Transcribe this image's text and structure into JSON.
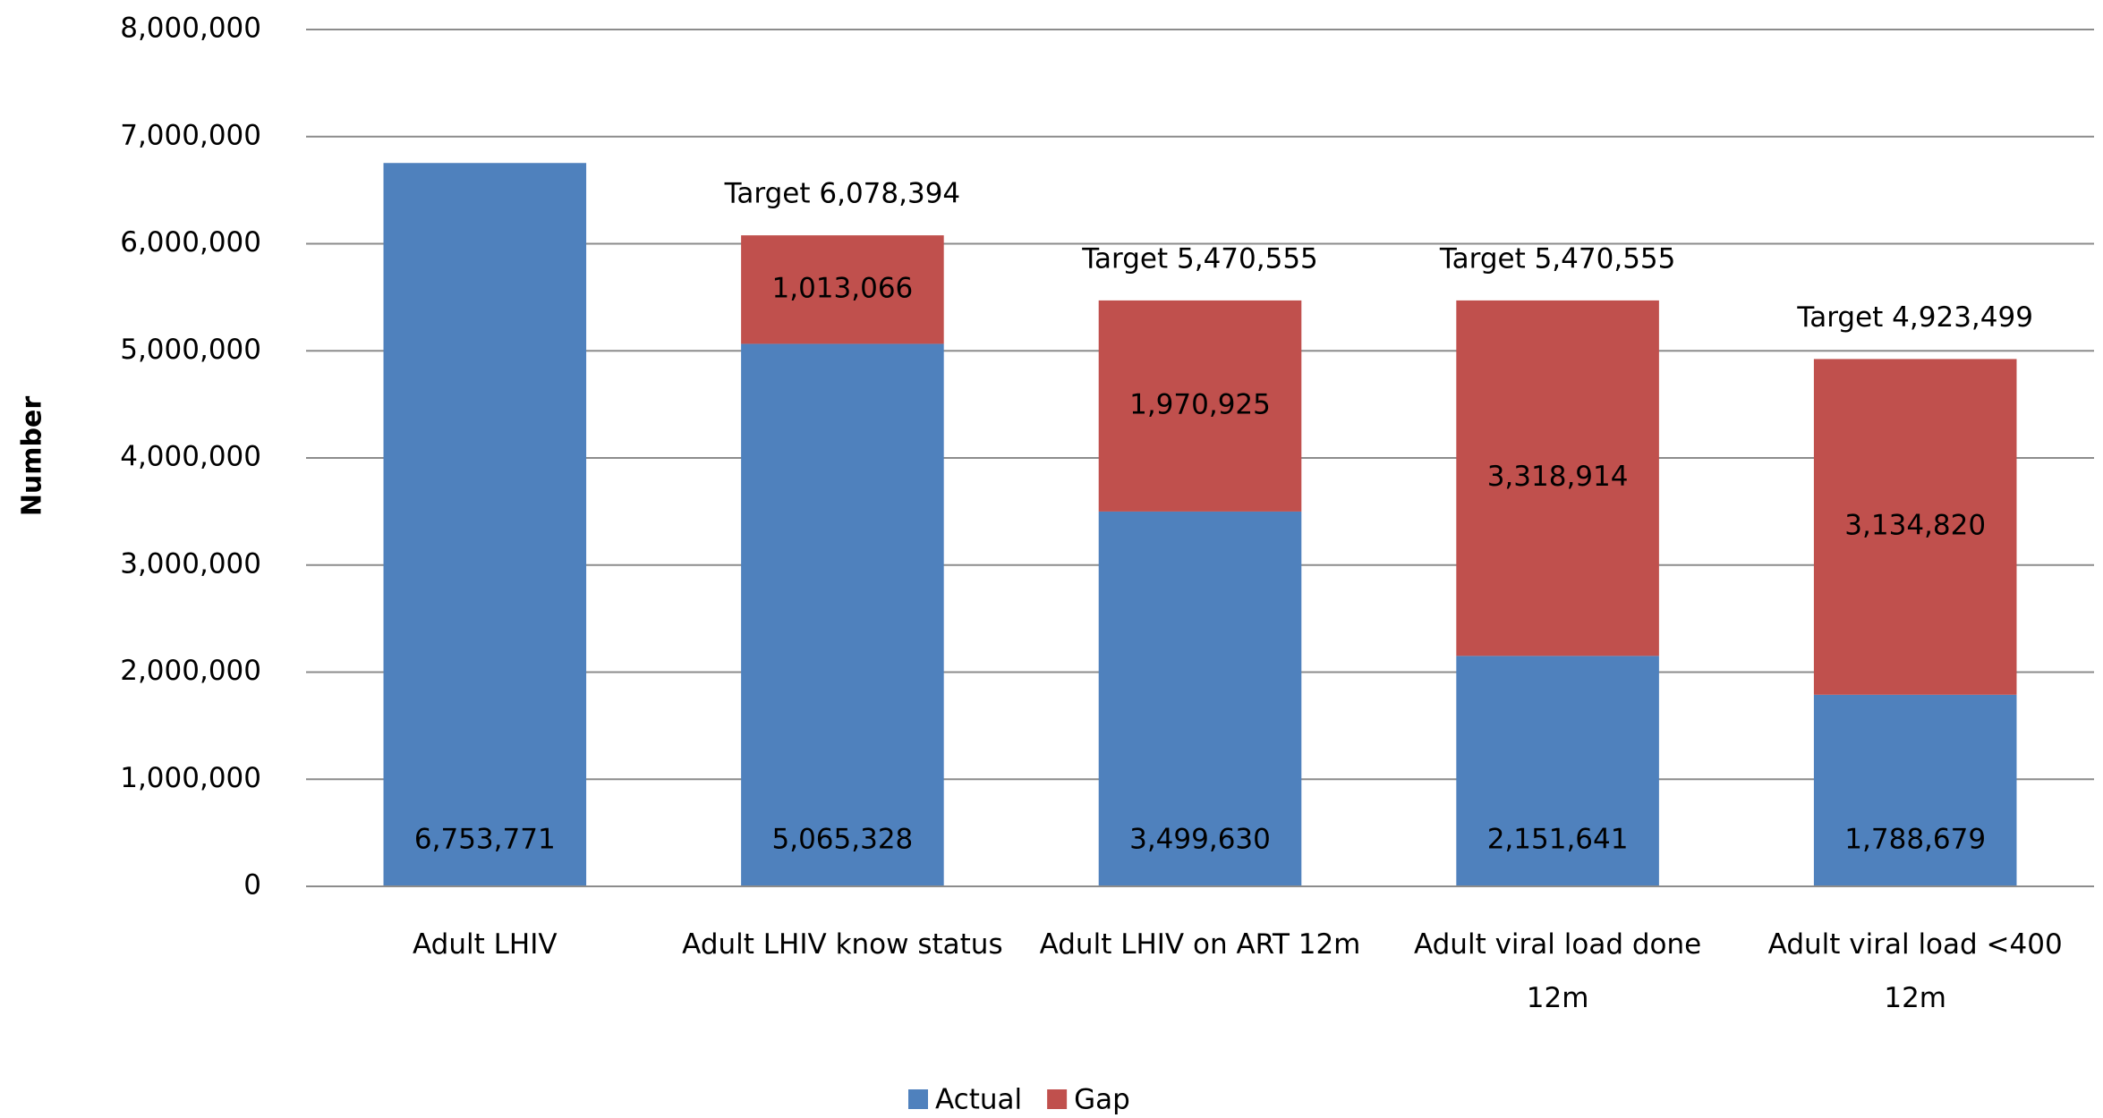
{
  "chart_data": {
    "type": "stacked_bar",
    "y_axis_label": "Number",
    "categories": [
      "Adult LHIV",
      "Adult LHIV know status",
      "Adult LHIV on ART 12m",
      "Adult viral load done 12m",
      "Adult viral load <400 12m"
    ],
    "series": [
      {
        "name": "Actual",
        "color": "#4f81bd",
        "values": [
          6753771,
          5065328,
          3499630,
          2151641,
          1788679
        ],
        "value_labels": [
          "6,753,771",
          "5,065,328",
          "3,499,630",
          "2,151,641",
          "1,788,679"
        ]
      },
      {
        "name": "Gap",
        "color": "#c0504d",
        "values": [
          null,
          1013066,
          1970925,
          3318914,
          3134820
        ],
        "value_labels": [
          null,
          "1,013,066",
          "1,970,925",
          "3,318,914",
          "3,134,820"
        ]
      }
    ],
    "annotations": [
      null,
      "Target 6,078,394",
      "Target 5,470,555",
      "Target 5,470,555",
      "Target 4,923,499"
    ],
    "ylim": [
      0,
      8000000
    ],
    "yticks": [
      0,
      {
        "value": 1000000,
        "label": "1,000,000"
      },
      {
        "value": 2000000,
        "label": "2,000,000"
      },
      {
        "value": 3000000,
        "label": "3,000,000"
      },
      {
        "value": 4000000,
        "label": "4,000,000"
      },
      {
        "value": 5000000,
        "label": "5,000,000"
      },
      {
        "value": 6000000,
        "label": "6,000,000"
      },
      {
        "value": 7000000,
        "label": "7,000,000"
      },
      {
        "value": 8000000,
        "label": "8,000,000"
      }
    ],
    "grid": true,
    "legend": "bottom"
  }
}
